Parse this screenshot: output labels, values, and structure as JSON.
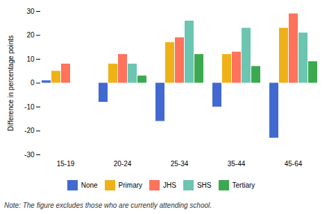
{
  "chart_data": {
    "type": "bar",
    "ylabel": "Difference in percentage points",
    "categories": [
      "15-19",
      "20-24",
      "25-34",
      "35-44",
      "45-64"
    ],
    "series": [
      {
        "name": "None",
        "values": [
          1,
          -8,
          -16,
          -10,
          -23
        ]
      },
      {
        "name": "Primary",
        "values": [
          5,
          8,
          17,
          12,
          23
        ]
      },
      {
        "name": "JHS",
        "values": [
          8,
          12,
          19,
          13,
          29
        ]
      },
      {
        "name": "SHS",
        "values": [
          0,
          8,
          26,
          23,
          21
        ]
      },
      {
        "name": "Tertiary",
        "values": [
          0,
          3,
          12,
          7,
          9
        ]
      }
    ],
    "ylim": [
      -30,
      30
    ],
    "yticks": [
      -30,
      -20,
      -10,
      0,
      10,
      20,
      30
    ],
    "grid": false,
    "legend": "bottom",
    "annotations": [
      "Note: The figure excludes those who are currently attending school."
    ]
  }
}
